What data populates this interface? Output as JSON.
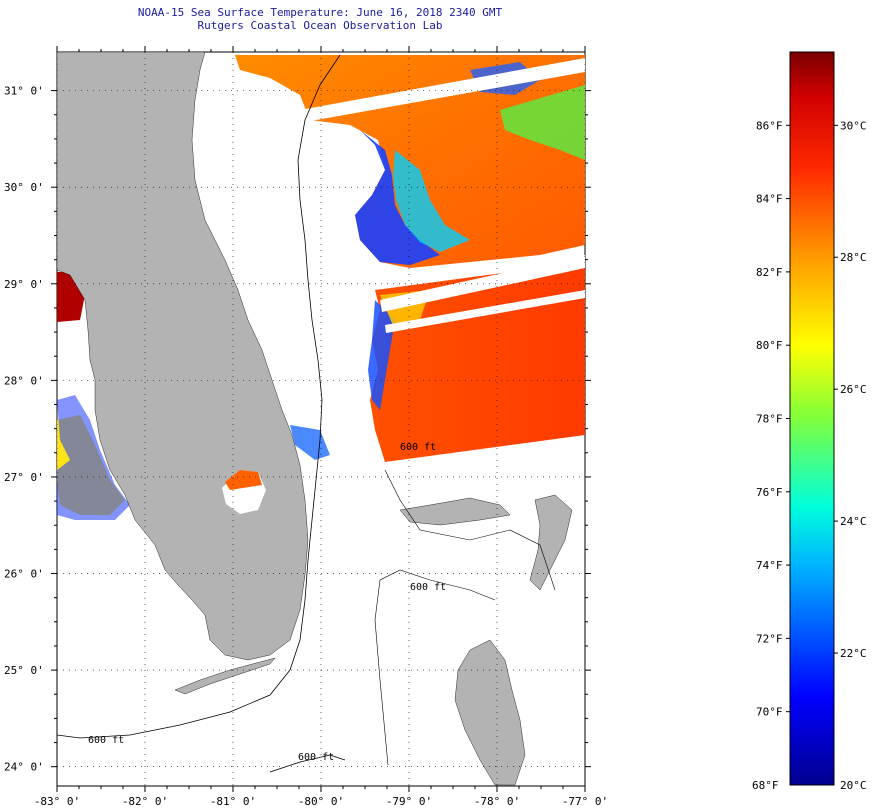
{
  "title": "NOAA-15 Sea Surface Temperature:  June 16, 2018 2340 GMT",
  "subtitle": "Rutgers Coastal Ocean Observation Lab",
  "map": {
    "lon_labels": [
      "-83° 0'",
      "-82° 0'",
      "-81° 0'",
      "-80° 0'",
      "-79° 0'",
      "-78° 0'",
      "-77° 0'"
    ],
    "lat_labels": [
      "31° 0'",
      "30° 0'",
      "29° 0'",
      "28° 0'",
      "27° 0'",
      "26° 0'",
      "25° 0'",
      "24° 0'"
    ],
    "lon_range": [
      -83,
      -77
    ],
    "lat_range": [
      23.8,
      31.4
    ],
    "contour_label": "600 ft",
    "land_color": "#b3b3b3",
    "grid": "dotted"
  },
  "colorbar": {
    "f_labels": [
      "86°F",
      "84°F",
      "82°F",
      "80°F",
      "78°F",
      "76°F",
      "74°F",
      "72°F",
      "70°F"
    ],
    "c_labels": [
      "30°C",
      "28°C",
      "26°C",
      "24°C",
      "22°C"
    ],
    "min_f_label": "68°F",
    "min_c_label": "20°C",
    "range_f": [
      68,
      88
    ]
  }
}
